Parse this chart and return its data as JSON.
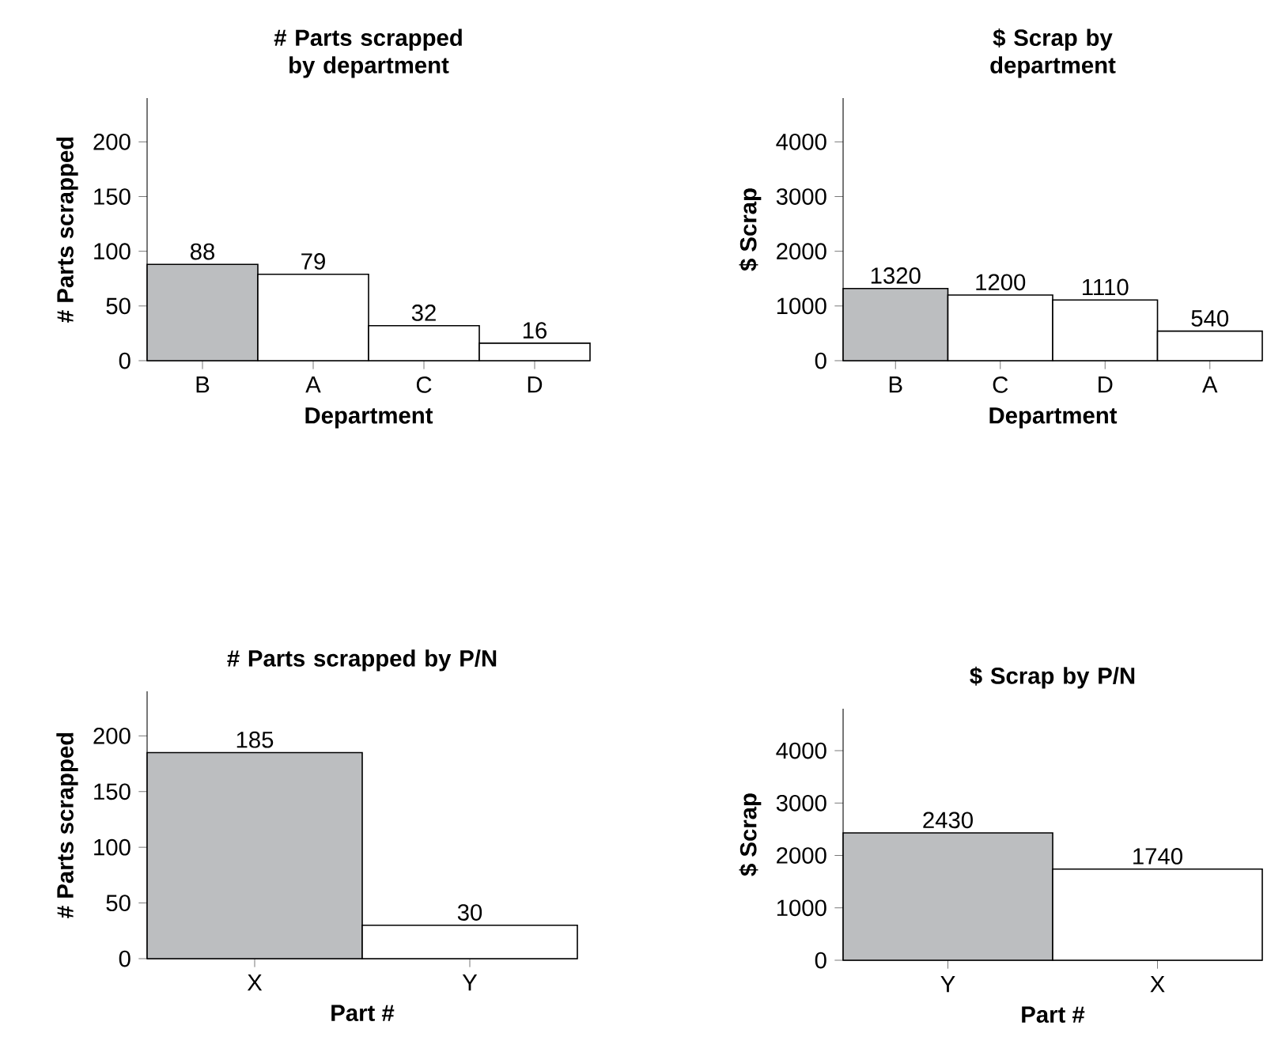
{
  "chart_data": [
    {
      "type": "bar",
      "title": "# Parts scrapped by department",
      "xlabel": "Department",
      "ylabel": "# Parts scrapped",
      "categories": [
        "B",
        "A",
        "C",
        "D"
      ],
      "values": [
        88,
        79,
        32,
        16
      ],
      "colors": [
        "#bcbec0",
        "#ffffff",
        "#ffffff",
        "#ffffff"
      ],
      "ylim": [
        0,
        240
      ],
      "yticks": [
        0,
        50,
        100,
        150,
        200
      ],
      "data_labels": true
    },
    {
      "type": "bar",
      "title": "$ Scrap by department",
      "xlabel": "Department",
      "ylabel": "$ Scrap",
      "categories": [
        "B",
        "C",
        "D",
        "A"
      ],
      "values": [
        1320,
        1200,
        1110,
        540
      ],
      "colors": [
        "#bcbec0",
        "#ffffff",
        "#ffffff",
        "#ffffff"
      ],
      "ylim": [
        0,
        4800
      ],
      "yticks": [
        0,
        1000,
        2000,
        3000,
        4000
      ],
      "data_labels": true
    },
    {
      "type": "bar",
      "title": "# Parts scrapped by P/N",
      "xlabel": "Part #",
      "ylabel": "# Parts scrapped",
      "categories": [
        "X",
        "Y"
      ],
      "values": [
        185,
        30
      ],
      "colors": [
        "#bcbec0",
        "#ffffff"
      ],
      "ylim": [
        0,
        240
      ],
      "yticks": [
        0,
        50,
        100,
        150,
        200
      ],
      "data_labels": true
    },
    {
      "type": "bar",
      "title": "$ Scrap by P/N",
      "xlabel": "Part #",
      "ylabel": "$ Scrap",
      "categories": [
        "Y",
        "X"
      ],
      "values": [
        2430,
        1740
      ],
      "colors": [
        "#bcbec0",
        "#ffffff"
      ],
      "ylim": [
        0,
        4800
      ],
      "yticks": [
        0,
        1000,
        2000,
        3000,
        4000
      ],
      "data_labels": true
    }
  ]
}
